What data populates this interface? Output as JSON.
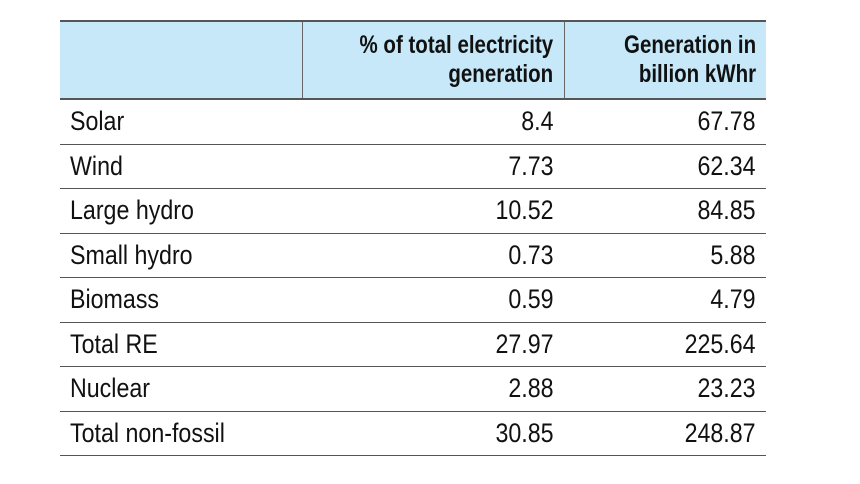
{
  "chart_data": {
    "type": "table",
    "columns": [
      "",
      "% of total electricity generation",
      "Generation in billion kWhr"
    ],
    "header_lines": [
      [
        ""
      ],
      [
        "% of total electricity",
        "generation"
      ],
      [
        "Generation in",
        "billion kWhr"
      ]
    ],
    "rows": [
      [
        "Solar",
        "8.4",
        "67.78"
      ],
      [
        "Wind",
        "7.73",
        "62.34"
      ],
      [
        "Large hydro",
        "10.52",
        "84.85"
      ],
      [
        "Small hydro",
        "0.73",
        "5.88"
      ],
      [
        "Biomass",
        "0.59",
        "4.79"
      ],
      [
        "Total RE",
        "27.97",
        "225.64"
      ],
      [
        "Nuclear",
        "2.88",
        "23.23"
      ],
      [
        "Total non-fossil",
        "30.85",
        "248.87"
      ]
    ],
    "colors": {
      "header_background": "#c6e8f8",
      "rule": "#555555"
    }
  }
}
